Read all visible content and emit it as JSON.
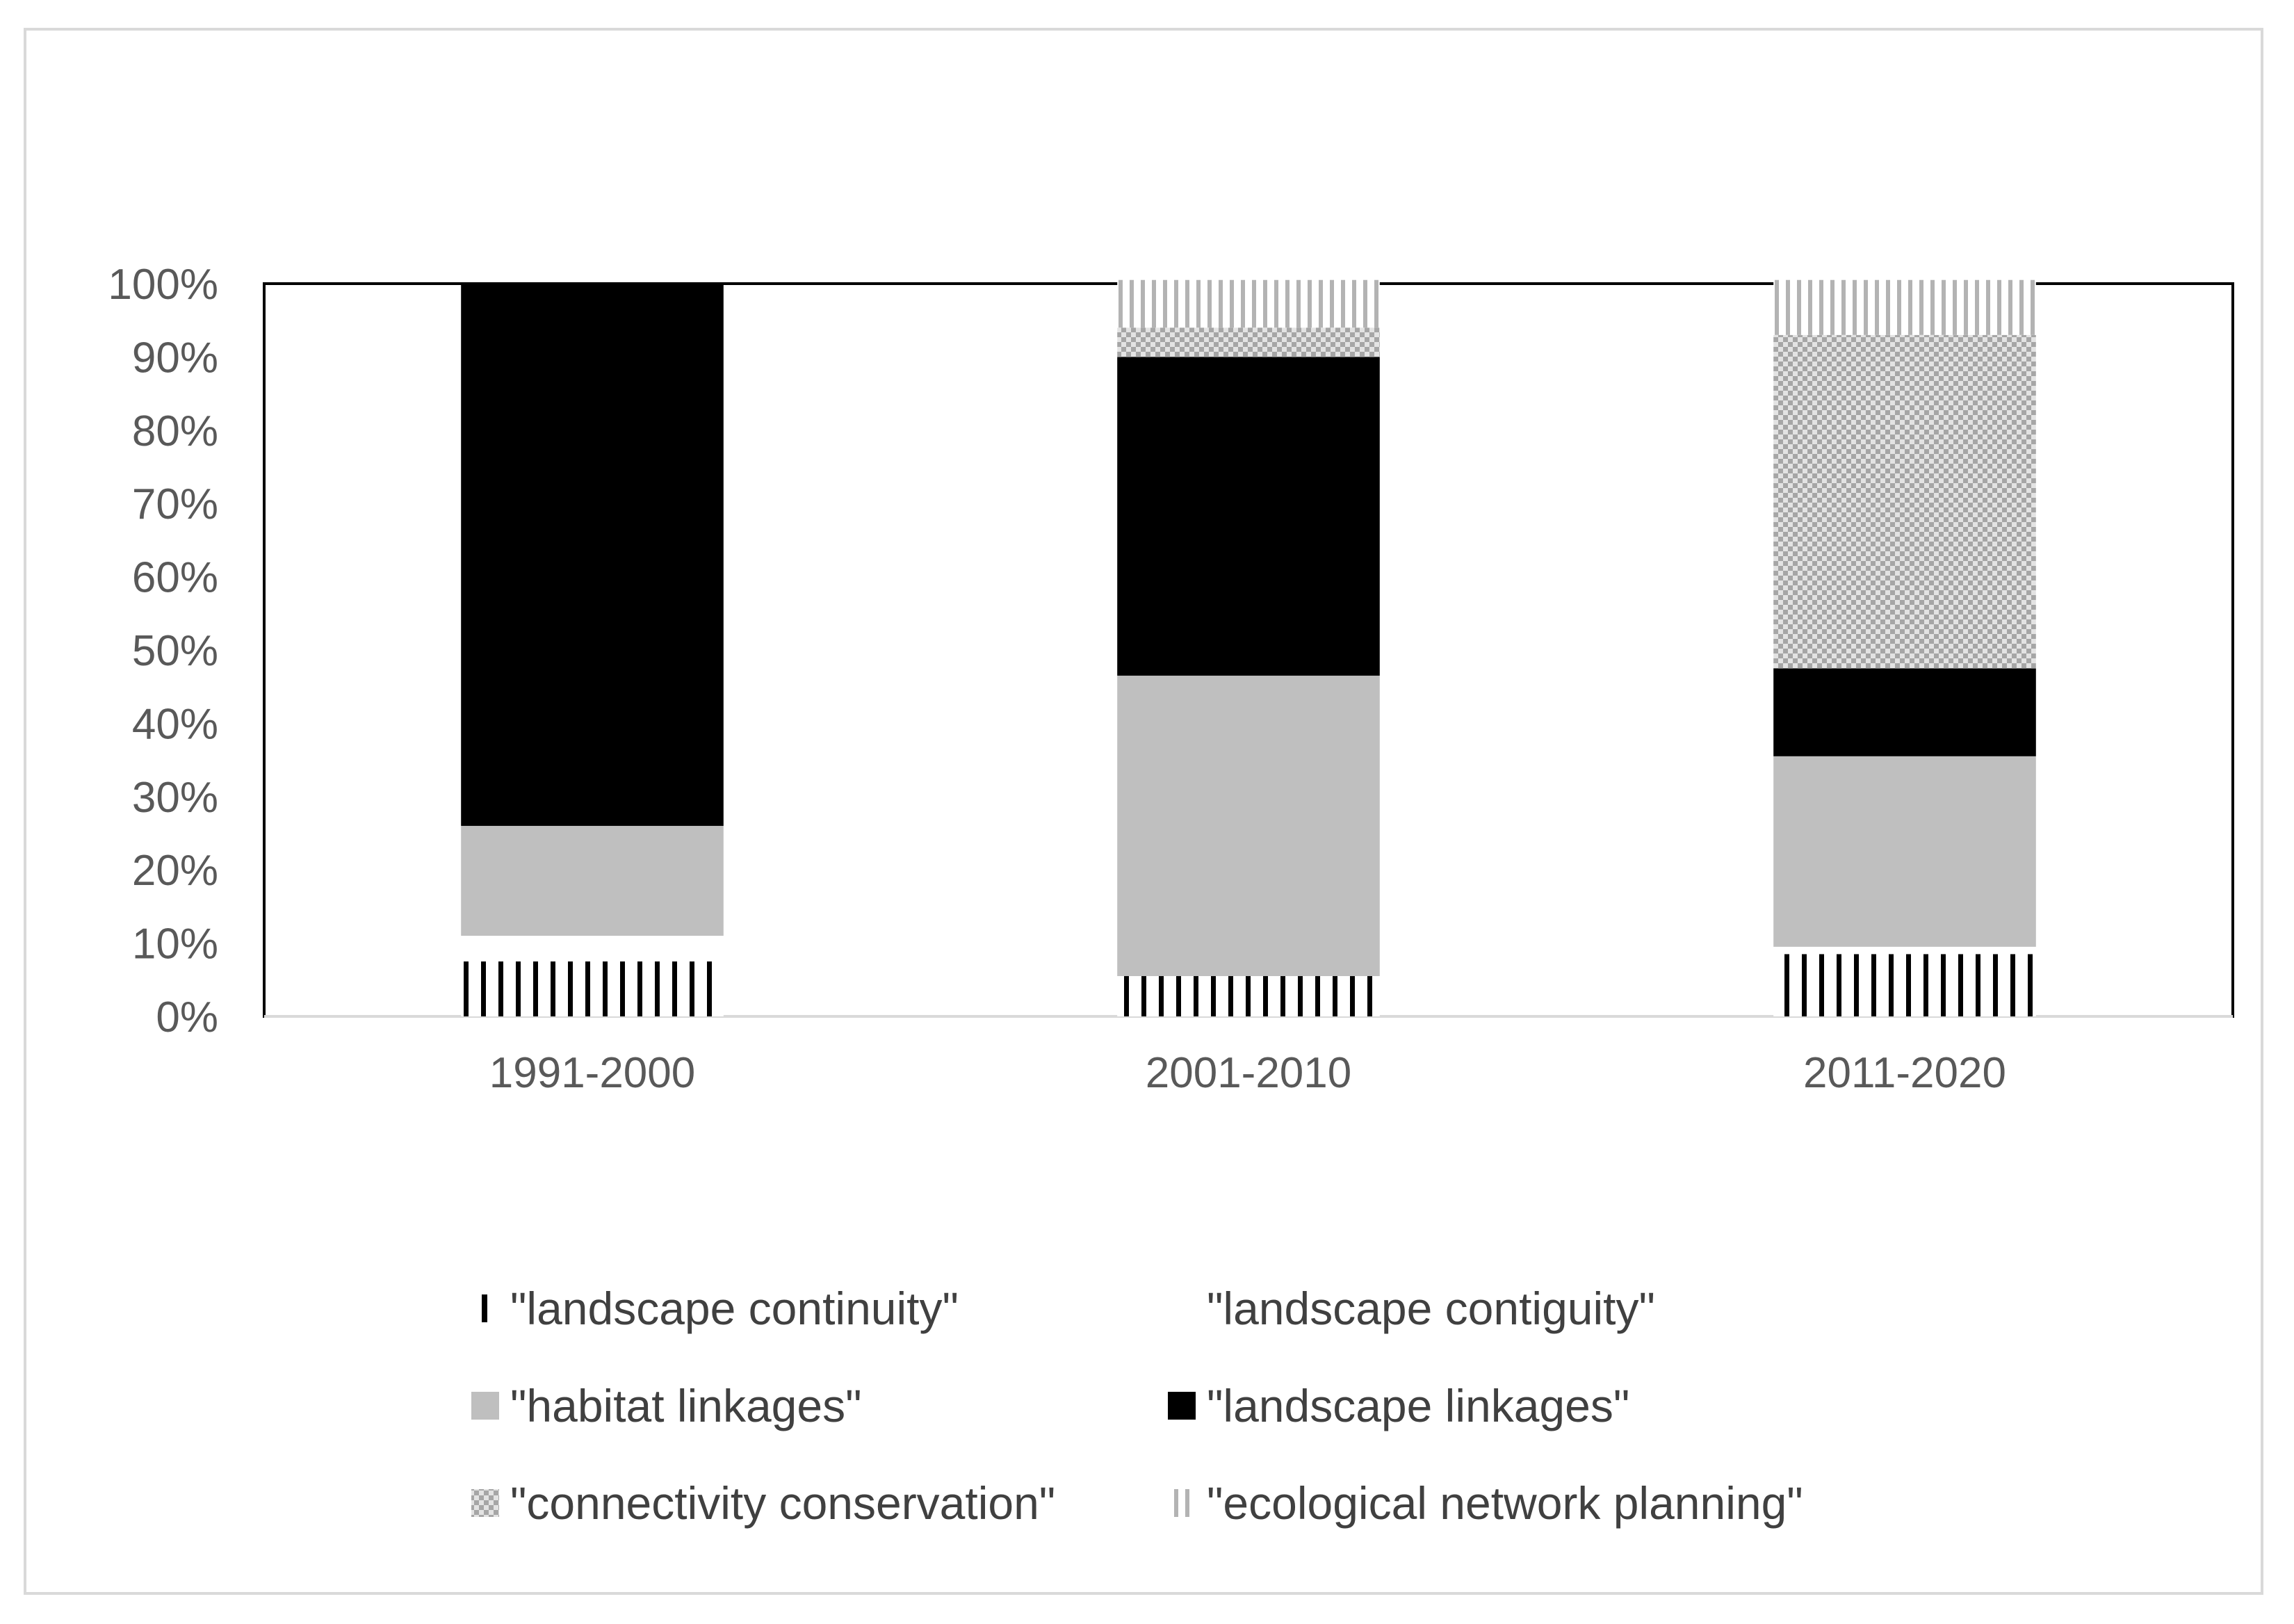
{
  "chart_data": {
    "type": "bar",
    "stacked": true,
    "percent_stacked": true,
    "categories": [
      "1991-2000",
      "2001-2010",
      "2011-2020"
    ],
    "y_ticks": [
      "0%",
      "10%",
      "20%",
      "30%",
      "40%",
      "50%",
      "60%",
      "70%",
      "80%",
      "90%",
      "100%"
    ],
    "ylim": [
      0,
      100
    ],
    "title": "",
    "xlabel": "",
    "ylabel": "",
    "grid": false,
    "legend_position": "bottom",
    "series": [
      {
        "name": "\"landscape continuity\"",
        "values": [
          7.5,
          5.5,
          8.5
        ],
        "fill": "vertical-stripes-black"
      },
      {
        "name": "\"landscape contiguity\"",
        "values": [
          3.5,
          0,
          1
        ],
        "fill": "#ffffff"
      },
      {
        "name": "\"habitat linkages\"",
        "values": [
          15,
          41,
          26
        ],
        "fill": "#bfbfbf"
      },
      {
        "name": "\"landscape linkages\"",
        "values": [
          74,
          43.5,
          12
        ],
        "fill": "#000000"
      },
      {
        "name": "\"connectivity conservation\"",
        "values": [
          0,
          4,
          45.5
        ],
        "fill": "checker-grey"
      },
      {
        "name": "\"ecological network planning\"",
        "values": [
          0,
          6.5,
          7.5
        ],
        "fill": "vertical-stripes-grey"
      }
    ]
  }
}
